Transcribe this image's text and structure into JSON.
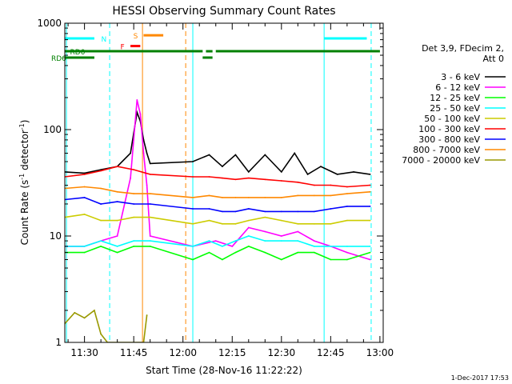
{
  "chart_data": {
    "type": "line",
    "title": "HESSI Observing Summary Count Rates",
    "xlabel": "Start Time (28-Nov-16 11:22:22)",
    "ylabel": "Count Rate (s^-1 detector^-1)",
    "ylabel_parts": {
      "prefix": "Count Rate (s",
      "exp1": "-1",
      "mid": " detector",
      "exp2": "-1",
      "suffix": ")"
    },
    "y_scale": "log",
    "ylim": [
      1,
      1000
    ],
    "xlim": [
      "11:24:00",
      "13:01:00"
    ],
    "x_ticks": [
      "11:30",
      "11:45",
      "12:00",
      "12:15",
      "12:30",
      "12:45",
      "13:00"
    ],
    "y_ticks": [
      {
        "label": "1",
        "value": 1
      },
      {
        "label": "10",
        "value": 10
      },
      {
        "label": "100",
        "value": 100
      },
      {
        "label": "1000",
        "value": 1000
      }
    ],
    "legend_header": [
      "Det 3,9, FDecim 2,",
      "Att 0"
    ],
    "legend_position": "right",
    "series": [
      {
        "name": "3 - 6 keV",
        "color": "#000000",
        "points": [
          [
            "11:24",
            40
          ],
          [
            "11:30",
            39
          ],
          [
            "11:35",
            42
          ],
          [
            "11:40",
            45
          ],
          [
            "11:44",
            60
          ],
          [
            "11:46",
            145
          ],
          [
            "11:47",
            120
          ],
          [
            "11:48",
            80
          ],
          [
            "11:49",
            60
          ],
          [
            "11:50",
            48
          ],
          [
            "12:03",
            50
          ],
          [
            "12:08",
            58
          ],
          [
            "12:12",
            45
          ],
          [
            "12:16",
            58
          ],
          [
            "12:20",
            40
          ],
          [
            "12:25",
            58
          ],
          [
            "12:30",
            40
          ],
          [
            "12:34",
            60
          ],
          [
            "12:38",
            38
          ],
          [
            "12:42",
            45
          ],
          [
            "12:47",
            38
          ],
          [
            "12:52",
            40
          ],
          [
            "12:57",
            38
          ]
        ]
      },
      {
        "name": "6 - 12 keV",
        "color": "#ff00ff",
        "points": [
          [
            "11:24",
            8
          ],
          [
            "11:30",
            8
          ],
          [
            "11:35",
            9
          ],
          [
            "11:40",
            10
          ],
          [
            "11:44",
            35
          ],
          [
            "11:46",
            190
          ],
          [
            "11:47",
            140
          ],
          [
            "11:48",
            60
          ],
          [
            "11:49",
            30
          ],
          [
            "11:50",
            10
          ],
          [
            "12:03",
            8
          ],
          [
            "12:10",
            9
          ],
          [
            "12:15",
            8
          ],
          [
            "12:20",
            12
          ],
          [
            "12:25",
            11
          ],
          [
            "12:30",
            10
          ],
          [
            "12:35",
            11
          ],
          [
            "12:40",
            9
          ],
          [
            "12:45",
            8
          ],
          [
            "12:50",
            7
          ],
          [
            "12:57",
            6
          ]
        ]
      },
      {
        "name": "12 - 25 keV",
        "color": "#00ff00",
        "points": [
          [
            "11:24",
            7
          ],
          [
            "11:30",
            7
          ],
          [
            "11:35",
            8
          ],
          [
            "11:40",
            7
          ],
          [
            "11:45",
            8
          ],
          [
            "11:50",
            8
          ],
          [
            "12:03",
            6
          ],
          [
            "12:08",
            7
          ],
          [
            "12:12",
            6
          ],
          [
            "12:16",
            7
          ],
          [
            "12:20",
            8
          ],
          [
            "12:25",
            7
          ],
          [
            "12:30",
            6
          ],
          [
            "12:35",
            7
          ],
          [
            "12:40",
            7
          ],
          [
            "12:45",
            6
          ],
          [
            "12:50",
            6
          ],
          [
            "12:57",
            7
          ]
        ]
      },
      {
        "name": "25 - 50 keV",
        "color": "#00ffff",
        "points": [
          [
            "11:24",
            8
          ],
          [
            "11:30",
            8
          ],
          [
            "11:35",
            9
          ],
          [
            "11:40",
            8
          ],
          [
            "11:45",
            9
          ],
          [
            "11:50",
            9
          ],
          [
            "12:03",
            8
          ],
          [
            "12:08",
            9
          ],
          [
            "12:12",
            8
          ],
          [
            "12:16",
            9
          ],
          [
            "12:20",
            10
          ],
          [
            "12:25",
            9
          ],
          [
            "12:30",
            9
          ],
          [
            "12:35",
            9
          ],
          [
            "12:40",
            8
          ],
          [
            "12:45",
            8
          ],
          [
            "12:50",
            8
          ],
          [
            "12:57",
            8
          ]
        ]
      },
      {
        "name": "50 - 100 keV",
        "color": "#cccc00",
        "points": [
          [
            "11:24",
            15
          ],
          [
            "11:30",
            16
          ],
          [
            "11:35",
            14
          ],
          [
            "11:40",
            14
          ],
          [
            "11:45",
            15
          ],
          [
            "11:50",
            15
          ],
          [
            "12:03",
            13
          ],
          [
            "12:08",
            14
          ],
          [
            "12:12",
            13
          ],
          [
            "12:16",
            13
          ],
          [
            "12:20",
            14
          ],
          [
            "12:25",
            15
          ],
          [
            "12:30",
            14
          ],
          [
            "12:35",
            13
          ],
          [
            "12:40",
            13
          ],
          [
            "12:45",
            13
          ],
          [
            "12:50",
            14
          ],
          [
            "12:57",
            14
          ]
        ]
      },
      {
        "name": "100 - 300 keV",
        "color": "#ff0000",
        "points": [
          [
            "11:24",
            36
          ],
          [
            "11:30",
            38
          ],
          [
            "11:35",
            41
          ],
          [
            "11:40",
            45
          ],
          [
            "11:45",
            42
          ],
          [
            "11:50",
            38
          ],
          [
            "12:03",
            36
          ],
          [
            "12:08",
            36
          ],
          [
            "12:12",
            35
          ],
          [
            "12:16",
            34
          ],
          [
            "12:20",
            35
          ],
          [
            "12:25",
            34
          ],
          [
            "12:30",
            33
          ],
          [
            "12:35",
            32
          ],
          [
            "12:40",
            30
          ],
          [
            "12:45",
            30
          ],
          [
            "12:50",
            29
          ],
          [
            "12:57",
            30
          ]
        ]
      },
      {
        "name": "300 - 800 keV",
        "color": "#0000ff",
        "points": [
          [
            "11:24",
            22
          ],
          [
            "11:30",
            23
          ],
          [
            "11:35",
            20
          ],
          [
            "11:40",
            21
          ],
          [
            "11:45",
            20
          ],
          [
            "11:50",
            20
          ],
          [
            "12:03",
            18
          ],
          [
            "12:08",
            18
          ],
          [
            "12:12",
            17
          ],
          [
            "12:16",
            17
          ],
          [
            "12:20",
            18
          ],
          [
            "12:25",
            17
          ],
          [
            "12:30",
            17
          ],
          [
            "12:35",
            17
          ],
          [
            "12:40",
            17
          ],
          [
            "12:45",
            18
          ],
          [
            "12:50",
            19
          ],
          [
            "12:57",
            19
          ]
        ]
      },
      {
        "name": "800 - 7000 keV",
        "color": "#ff8800",
        "points": [
          [
            "11:24",
            28
          ],
          [
            "11:30",
            29
          ],
          [
            "11:35",
            28
          ],
          [
            "11:40",
            26
          ],
          [
            "11:45",
            25
          ],
          [
            "11:50",
            25
          ],
          [
            "12:03",
            23
          ],
          [
            "12:08",
            24
          ],
          [
            "12:12",
            23
          ],
          [
            "12:16",
            23
          ],
          [
            "12:20",
            23
          ],
          [
            "12:25",
            23
          ],
          [
            "12:30",
            23
          ],
          [
            "12:35",
            24
          ],
          [
            "12:40",
            24
          ],
          [
            "12:45",
            24
          ],
          [
            "12:50",
            25
          ],
          [
            "12:57",
            26
          ]
        ]
      },
      {
        "name": "7000 - 20000 keV",
        "color": "#999900",
        "points": [
          [
            "11:24",
            1.5
          ],
          [
            "11:27",
            1.9
          ],
          [
            "11:30",
            1.7
          ],
          [
            "11:33",
            2.0
          ],
          [
            "11:35",
            1.2
          ],
          [
            "11:37",
            1.0
          ],
          [
            "11:48",
            1.0
          ],
          [
            "11:49",
            1.8
          ]
        ]
      }
    ],
    "flags": [
      {
        "name": "N",
        "color": "#00ffff",
        "y": 720,
        "segments": [
          [
            "11:24",
            "11:33"
          ],
          [
            "12:43",
            "12:56"
          ]
        ]
      },
      {
        "name": "S",
        "color": "#ff8800",
        "y": 770,
        "segments": [
          [
            "11:48",
            "11:54"
          ]
        ]
      },
      {
        "name": "F",
        "color": "#ff0000",
        "y": 610,
        "segments": [
          [
            "11:44",
            "11:47"
          ]
        ]
      },
      {
        "name": "RD0",
        "color": "#008000",
        "y": 545,
        "segments": [
          [
            "11:24",
            "12:06"
          ],
          [
            "12:07",
            "12:09"
          ],
          [
            "12:10",
            "13:00"
          ]
        ]
      },
      {
        "name": "RD6",
        "color": "#008000",
        "y": 475,
        "segments": [
          [
            "11:24",
            "11:33"
          ],
          [
            "12:06",
            "12:09"
          ]
        ]
      }
    ],
    "vlines": [
      {
        "time": "11:24:30",
        "color": "#00ffff",
        "style": "solid"
      },
      {
        "time": "11:37:40",
        "color": "#00ffff",
        "style": "dashed"
      },
      {
        "time": "11:47:40",
        "color": "#ff8800",
        "style": "solid"
      },
      {
        "time": "12:00:50",
        "color": "#ff8800",
        "style": "dashed"
      },
      {
        "time": "12:03:00",
        "color": "#00ffff",
        "style": "solid"
      },
      {
        "time": "12:43:00",
        "color": "#00ffff",
        "style": "solid"
      },
      {
        "time": "12:57:20",
        "color": "#00ffff",
        "style": "dashed"
      }
    ],
    "footer": "1-Dec-2017 17:53"
  }
}
